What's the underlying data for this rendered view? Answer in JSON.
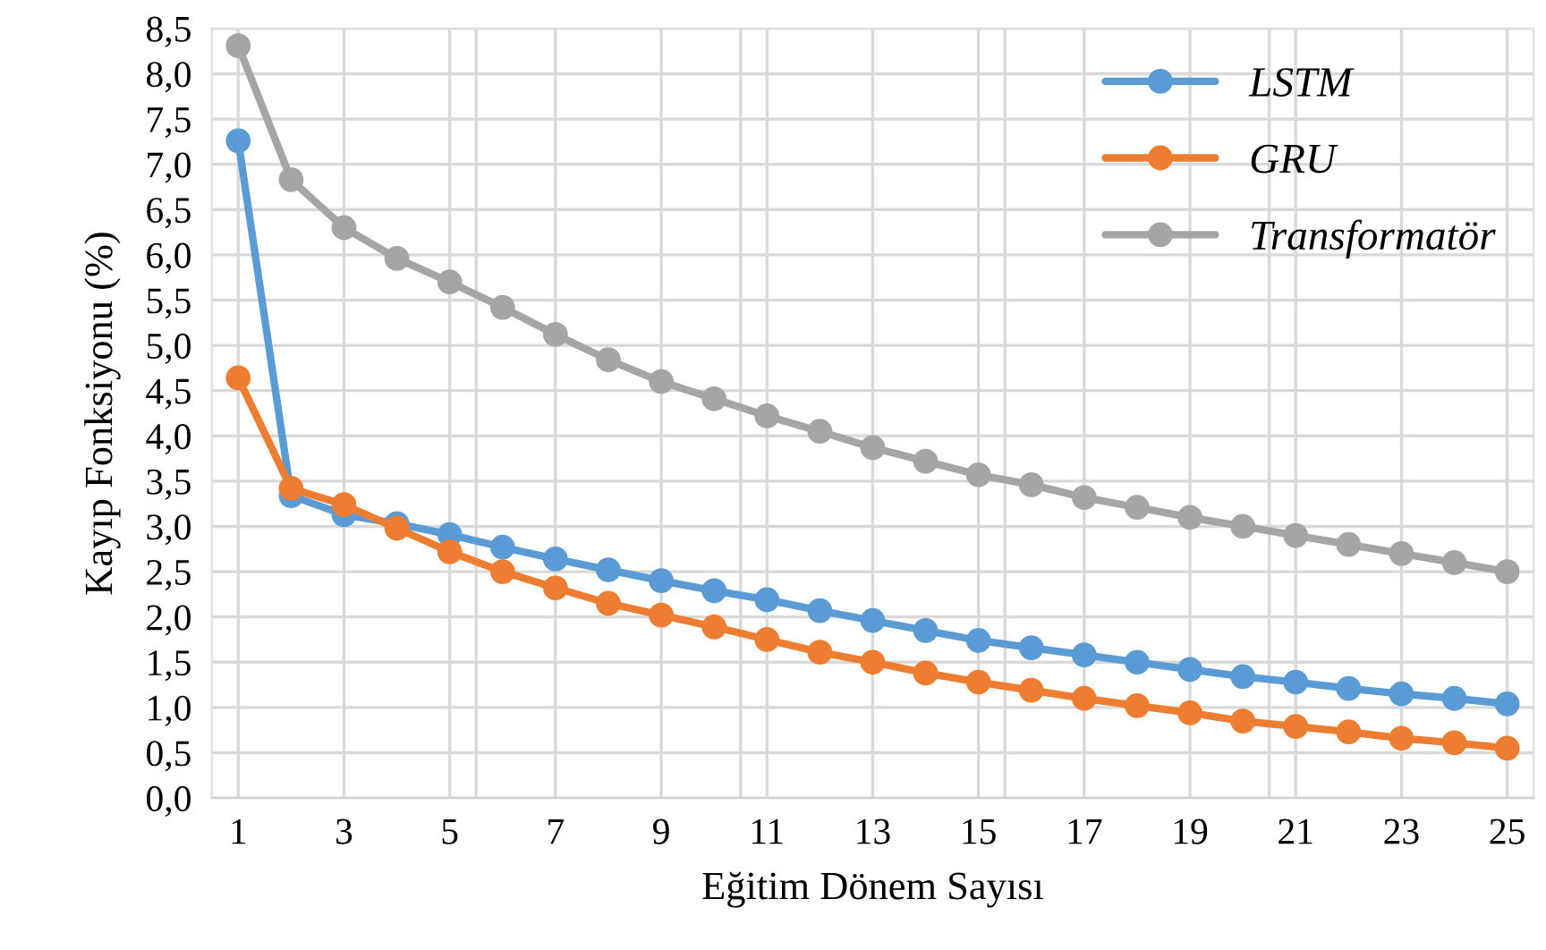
{
  "chart_data": {
    "type": "line",
    "xlabel": "Eğitim Dönem Sayısı",
    "ylabel": "Kayıp Fonksiyonu (%)",
    "x": [
      1,
      2,
      3,
      4,
      5,
      6,
      7,
      8,
      9,
      10,
      11,
      12,
      13,
      14,
      15,
      16,
      17,
      18,
      19,
      20,
      21,
      22,
      23,
      24,
      25
    ],
    "series": [
      {
        "name": "LSTM",
        "color": "#5b9bd5",
        "values": [
          7.26,
          3.34,
          3.13,
          3.03,
          2.91,
          2.77,
          2.64,
          2.52,
          2.4,
          2.29,
          2.19,
          2.07,
          1.96,
          1.85,
          1.74,
          1.66,
          1.58,
          1.5,
          1.42,
          1.34,
          1.28,
          1.21,
          1.15,
          1.1,
          1.04
        ]
      },
      {
        "name": "GRU",
        "color": "#ed7d31",
        "values": [
          4.64,
          3.42,
          3.24,
          2.98,
          2.72,
          2.5,
          2.32,
          2.15,
          2.02,
          1.89,
          1.75,
          1.61,
          1.5,
          1.38,
          1.28,
          1.19,
          1.1,
          1.02,
          0.94,
          0.85,
          0.79,
          0.73,
          0.66,
          0.61,
          0.55
        ]
      },
      {
        "name": "Transformatör",
        "color": "#a5a5a5",
        "values": [
          8.31,
          6.83,
          6.3,
          5.96,
          5.7,
          5.42,
          5.12,
          4.84,
          4.6,
          4.41,
          4.22,
          4.05,
          3.87,
          3.72,
          3.57,
          3.46,
          3.32,
          3.21,
          3.1,
          3.0,
          2.9,
          2.8,
          2.7,
          2.6,
          2.5
        ]
      }
    ],
    "xlim": [
      0.5,
      25.5
    ],
    "xticks": [
      1,
      3,
      {
        "value": 5.5,
        "label": null
      },
      5,
      7,
      9,
      {
        "value": 10.5,
        "label": null
      },
      11,
      13,
      15,
      {
        "value": 15.5,
        "label": null
      },
      17,
      19,
      21,
      {
        "value": 20.5,
        "label": null
      },
      23,
      25
    ],
    "ylim": [
      0,
      8.5
    ],
    "yticks": [
      {
        "value": 0,
        "label": "0,0"
      },
      {
        "value": 0.5,
        "label": "0,5"
      },
      {
        "value": 1,
        "label": "1,0"
      },
      {
        "value": 1.5,
        "label": "1,5"
      },
      {
        "value": 2,
        "label": "2,0"
      },
      {
        "value": 2.5,
        "label": "2,5"
      },
      {
        "value": 3,
        "label": "3,0"
      },
      {
        "value": 3.5,
        "label": "3,5"
      },
      {
        "value": 4,
        "label": "4,0"
      },
      {
        "value": 4.5,
        "label": "4,5"
      },
      {
        "value": 5,
        "label": "5,0"
      },
      {
        "value": 5.5,
        "label": "5,5"
      },
      {
        "value": 6,
        "label": "6,0"
      },
      {
        "value": 6.5,
        "label": "6,5"
      },
      {
        "value": 7,
        "label": "7,0"
      },
      {
        "value": 7.5,
        "label": "7,5"
      },
      {
        "value": 8,
        "label": "8,0"
      },
      {
        "value": 8.5,
        "label": "8,5"
      }
    ],
    "grid": true,
    "legend": "top right",
    "marker": "circle",
    "line_style": "solid"
  }
}
